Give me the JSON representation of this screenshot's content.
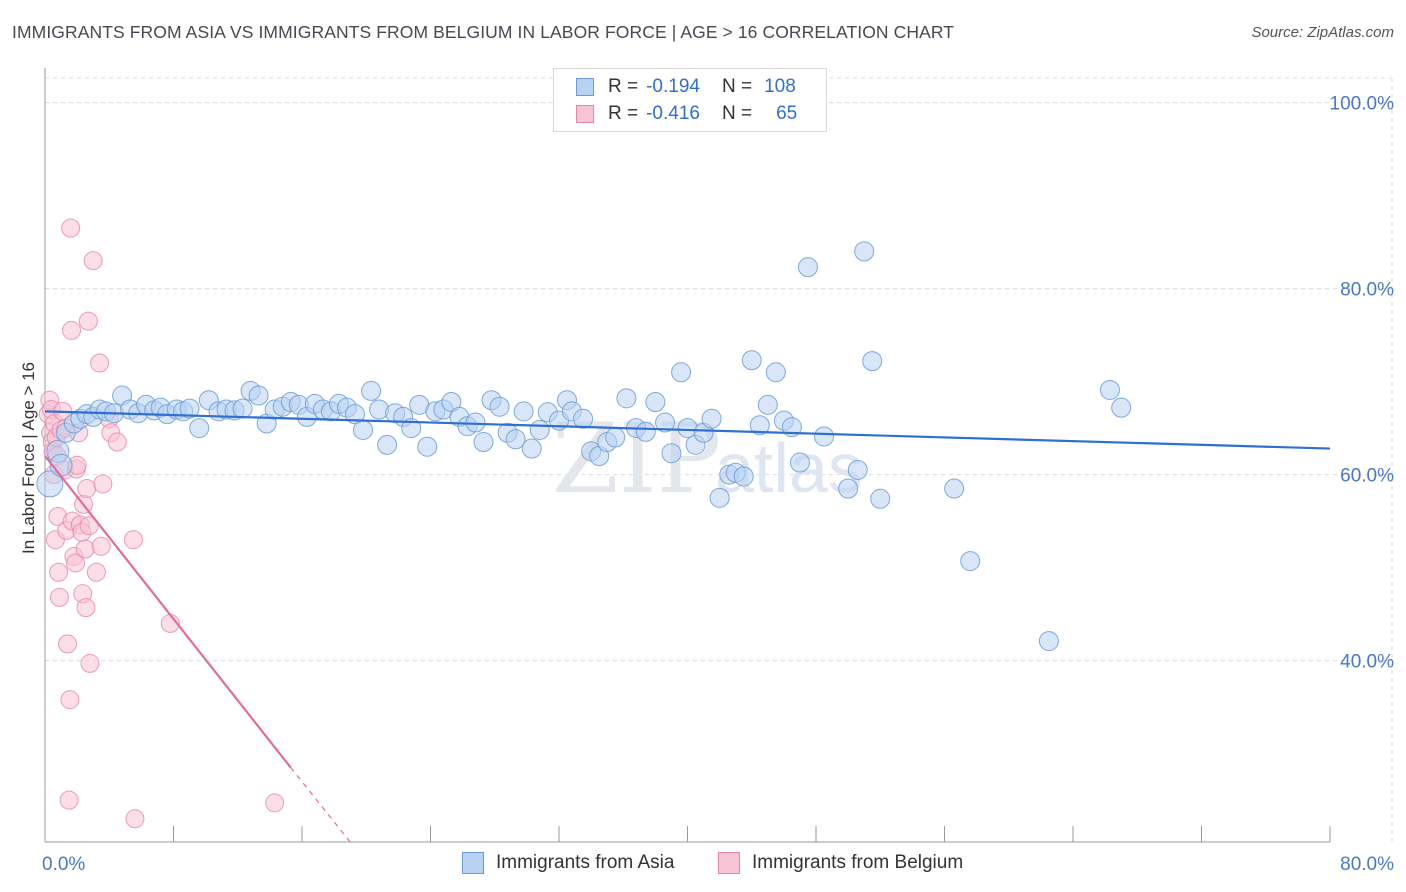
{
  "title": "IMMIGRANTS FROM ASIA VS IMMIGRANTS FROM BELGIUM IN LABOR FORCE | AGE > 16 CORRELATION CHART",
  "source": "Source: ZipAtlas.com",
  "legend": {
    "rows": [
      {
        "r_label": "R =",
        "r_value": "-0.194",
        "n_label": "N =",
        "n_value": "108"
      },
      {
        "r_label": "R =",
        "r_value": "-0.416",
        "n_label": "N =",
        "n_value": "65"
      }
    ]
  },
  "colors": {
    "asia": "#6b9bdb",
    "asia_fill": "#b8d2f3",
    "belgium": "#e885a7",
    "belgium_fill": "#f8c3d4",
    "asia_line": "#2f6fd0",
    "belgium_line": "#e36b97"
  },
  "chart_data": {
    "type": "scatter",
    "xlabel": "",
    "ylabel": "In Labor Force | Age > 16",
    "xlim": [
      0,
      80
    ],
    "ylim": [
      20.5,
      103.5
    ],
    "x_tick_labels": [
      "0.0%",
      "80.0%"
    ],
    "y_ticks": [
      40,
      60,
      80,
      100
    ],
    "y_tick_labels": [
      "40.0%",
      "60.0%",
      "80.0%",
      "100.0%"
    ],
    "grid": true,
    "watermark": "ZIPatlas",
    "series": [
      {
        "name": "Immigrants from Asia",
        "trend": {
          "x0": 0,
          "y0": 66.8,
          "x1": 80,
          "y1": 62.8
        },
        "points": [
          [
            0.3,
            59.0
          ],
          [
            0.8,
            62.5
          ],
          [
            1.0,
            61.0
          ],
          [
            1.3,
            64.5
          ],
          [
            1.8,
            65.5
          ],
          [
            2.2,
            66.0
          ],
          [
            2.6,
            66.5
          ],
          [
            3.0,
            66.2
          ],
          [
            3.4,
            67.0
          ],
          [
            3.8,
            66.8
          ],
          [
            4.3,
            66.6
          ],
          [
            4.8,
            68.5
          ],
          [
            5.3,
            67.0
          ],
          [
            5.8,
            66.6
          ],
          [
            6.3,
            67.5
          ],
          [
            6.8,
            66.9
          ],
          [
            7.2,
            67.2
          ],
          [
            7.6,
            66.5
          ],
          [
            8.2,
            67.0
          ],
          [
            8.6,
            66.8
          ],
          [
            9.0,
            67.1
          ],
          [
            9.6,
            65.0
          ],
          [
            10.2,
            68.0
          ],
          [
            10.8,
            66.8
          ],
          [
            11.3,
            67.0
          ],
          [
            11.8,
            66.9
          ],
          [
            12.3,
            67.1
          ],
          [
            12.8,
            69.0
          ],
          [
            13.3,
            68.5
          ],
          [
            13.8,
            65.5
          ],
          [
            14.3,
            67.0
          ],
          [
            14.8,
            67.3
          ],
          [
            15.3,
            67.8
          ],
          [
            15.8,
            67.5
          ],
          [
            16.3,
            66.2
          ],
          [
            16.8,
            67.6
          ],
          [
            17.3,
            67.0
          ],
          [
            17.8,
            66.8
          ],
          [
            18.3,
            67.6
          ],
          [
            18.8,
            67.2
          ],
          [
            19.3,
            66.5
          ],
          [
            19.8,
            64.8
          ],
          [
            20.3,
            69.0
          ],
          [
            20.8,
            67.0
          ],
          [
            21.3,
            63.2
          ],
          [
            21.8,
            66.6
          ],
          [
            22.3,
            66.2
          ],
          [
            22.8,
            65.0
          ],
          [
            23.3,
            67.5
          ],
          [
            23.8,
            63.0
          ],
          [
            24.3,
            66.8
          ],
          [
            24.8,
            67.0
          ],
          [
            25.3,
            67.8
          ],
          [
            25.8,
            66.2
          ],
          [
            26.3,
            65.2
          ],
          [
            26.8,
            65.6
          ],
          [
            27.3,
            63.5
          ],
          [
            27.8,
            68.0
          ],
          [
            28.3,
            67.3
          ],
          [
            28.8,
            64.5
          ],
          [
            29.3,
            63.8
          ],
          [
            29.8,
            66.8
          ],
          [
            30.3,
            62.8
          ],
          [
            30.8,
            64.8
          ],
          [
            31.3,
            66.7
          ],
          [
            32.0,
            65.8
          ],
          [
            32.5,
            68.0
          ],
          [
            32.8,
            66.8
          ],
          [
            33.5,
            66.0
          ],
          [
            34.0,
            62.5
          ],
          [
            34.5,
            62.0
          ],
          [
            35.0,
            63.5
          ],
          [
            35.5,
            64.0
          ],
          [
            36.2,
            68.2
          ],
          [
            36.8,
            65.0
          ],
          [
            37.4,
            64.6
          ],
          [
            38.0,
            67.8
          ],
          [
            38.6,
            65.6
          ],
          [
            39.0,
            62.3
          ],
          [
            39.6,
            71.0
          ],
          [
            40.0,
            65.0
          ],
          [
            40.5,
            63.2
          ],
          [
            41.0,
            64.5
          ],
          [
            41.5,
            66.0
          ],
          [
            42.0,
            57.5
          ],
          [
            42.6,
            60.0
          ],
          [
            43.0,
            60.2
          ],
          [
            43.5,
            59.8
          ],
          [
            44.0,
            72.3
          ],
          [
            44.5,
            65.3
          ],
          [
            45.0,
            67.5
          ],
          [
            45.5,
            71.0
          ],
          [
            46.0,
            65.8
          ],
          [
            46.5,
            65.1
          ],
          [
            47.0,
            61.3
          ],
          [
            47.5,
            82.3
          ],
          [
            48.5,
            64.1
          ],
          [
            50.0,
            58.5
          ],
          [
            50.6,
            60.5
          ],
          [
            51.0,
            84.0
          ],
          [
            51.5,
            72.2
          ],
          [
            52.0,
            57.4
          ],
          [
            56.6,
            58.5
          ],
          [
            57.6,
            50.7
          ],
          [
            62.5,
            42.1
          ],
          [
            66.3,
            69.1
          ],
          [
            67.0,
            67.2
          ]
        ]
      },
      {
        "name": "Immigrants from Belgium",
        "trend": {
          "x0": 0,
          "y0": 62.0,
          "x1": 15.3,
          "y1": 28.5,
          "dash_to_x": 19.0,
          "dash_to_y": 20.5
        },
        "points": [
          [
            0.2,
            66.5
          ],
          [
            0.3,
            68.0
          ],
          [
            0.35,
            64.5
          ],
          [
            0.4,
            67.0
          ],
          [
            0.45,
            63.5
          ],
          [
            0.5,
            62.5
          ],
          [
            0.55,
            60.0
          ],
          [
            0.6,
            65.5
          ],
          [
            0.65,
            53.0
          ],
          [
            0.7,
            64.0
          ],
          [
            0.75,
            62.0
          ],
          [
            0.8,
            55.5
          ],
          [
            0.85,
            49.5
          ],
          [
            0.9,
            46.8
          ],
          [
            1.0,
            64.8
          ],
          [
            1.1,
            66.8
          ],
          [
            1.2,
            60.5
          ],
          [
            1.3,
            65.0
          ],
          [
            1.35,
            54.0
          ],
          [
            1.4,
            41.8
          ],
          [
            1.5,
            25.0
          ],
          [
            1.55,
            35.8
          ],
          [
            1.6,
            86.5
          ],
          [
            1.65,
            75.5
          ],
          [
            1.7,
            55.0
          ],
          [
            1.8,
            51.2
          ],
          [
            1.9,
            50.5
          ],
          [
            1.95,
            60.6
          ],
          [
            2.0,
            61.0
          ],
          [
            2.1,
            64.5
          ],
          [
            2.2,
            54.6
          ],
          [
            2.3,
            53.8
          ],
          [
            2.35,
            47.2
          ],
          [
            2.4,
            56.8
          ],
          [
            2.5,
            52.0
          ],
          [
            2.55,
            45.7
          ],
          [
            2.6,
            58.5
          ],
          [
            2.7,
            76.5
          ],
          [
            2.75,
            54.5
          ],
          [
            2.8,
            39.7
          ],
          [
            3.0,
            83.0
          ],
          [
            3.2,
            49.5
          ],
          [
            3.4,
            72.0
          ],
          [
            3.5,
            52.3
          ],
          [
            3.6,
            59.0
          ],
          [
            4.0,
            66.0
          ],
          [
            4.1,
            64.5
          ],
          [
            4.5,
            63.5
          ],
          [
            5.5,
            53.0
          ],
          [
            5.6,
            23.0
          ],
          [
            7.8,
            44.0
          ],
          [
            14.3,
            24.7
          ]
        ]
      }
    ]
  },
  "bottom_legend": [
    "Immigrants from Asia",
    "Immigrants from Belgium"
  ]
}
